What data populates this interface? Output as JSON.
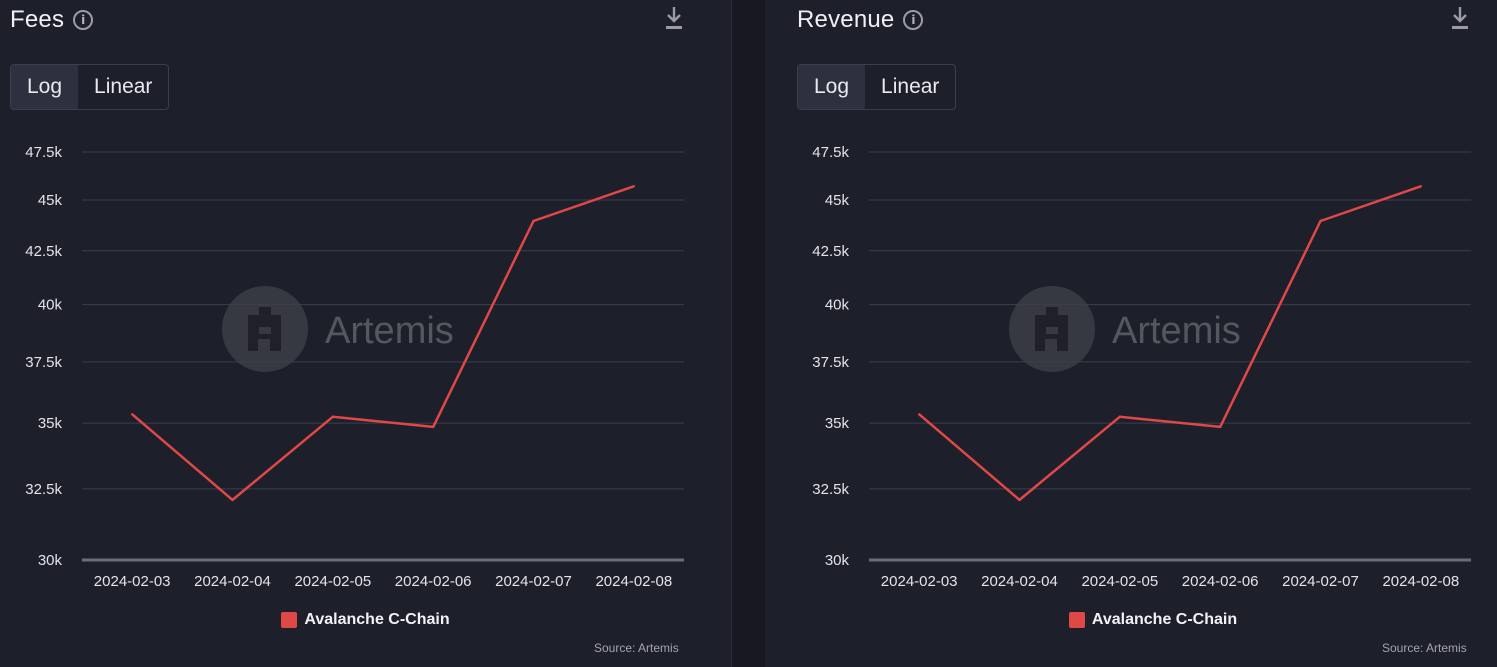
{
  "panels": [
    {
      "title": "Fees",
      "toggle": {
        "options": [
          "Log",
          "Linear"
        ],
        "selected": "Log"
      },
      "source": "Source: Artemis",
      "watermark": "Artemis"
    },
    {
      "title": "Revenue",
      "toggle": {
        "options": [
          "Log",
          "Linear"
        ],
        "selected": "Log"
      },
      "source": "Source: Artemis",
      "watermark": "Artemis"
    }
  ],
  "colors": {
    "background": "#1d1f2b",
    "series": "#e04848",
    "grid": "#3d3f4b",
    "axis": "#6b6d78"
  },
  "icons": {
    "info": "info-icon",
    "download": "download-icon"
  },
  "chart_data": [
    {
      "type": "line",
      "title": "Fees",
      "scale": "log",
      "x": [
        "2024-02-03",
        "2024-02-04",
        "2024-02-05",
        "2024-02-06",
        "2024-02-07",
        "2024-02-08"
      ],
      "series": [
        {
          "name": "Avalanche C-Chain",
          "values": [
            35350,
            32100,
            35250,
            34850,
            43950,
            45700
          ]
        }
      ],
      "yticks": [
        30000,
        32500,
        35000,
        37500,
        40000,
        42500,
        45000,
        47500
      ],
      "ytick_labels": [
        "30k",
        "32.5k",
        "35k",
        "37.5k",
        "40k",
        "42.5k",
        "45k",
        "47.5k"
      ],
      "ylim": [
        30000,
        47500
      ],
      "grid": true,
      "legend": "bottom-center"
    },
    {
      "type": "line",
      "title": "Revenue",
      "scale": "log",
      "x": [
        "2024-02-03",
        "2024-02-04",
        "2024-02-05",
        "2024-02-06",
        "2024-02-07",
        "2024-02-08"
      ],
      "series": [
        {
          "name": "Avalanche C-Chain",
          "values": [
            35350,
            32100,
            35250,
            34850,
            43950,
            45700
          ]
        }
      ],
      "yticks": [
        30000,
        32500,
        35000,
        37500,
        40000,
        42500,
        45000,
        47500
      ],
      "ytick_labels": [
        "30k",
        "32.5k",
        "35k",
        "37.5k",
        "40k",
        "42.5k",
        "45k",
        "47.5k"
      ],
      "ylim": [
        30000,
        47500
      ],
      "grid": true,
      "legend": "bottom-center"
    }
  ]
}
